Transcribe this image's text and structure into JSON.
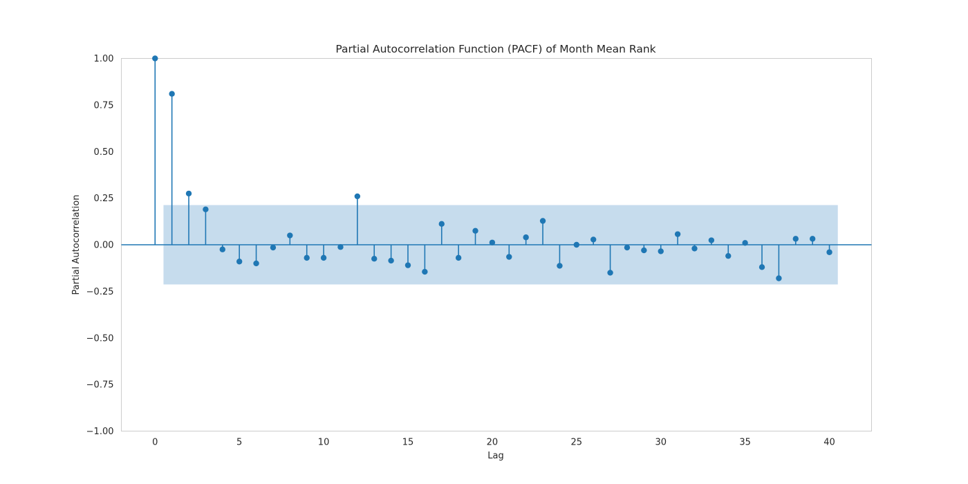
{
  "chart_data": {
    "type": "stem",
    "title": "Partial Autocorrelation Function (PACF) of Month Mean Rank",
    "xlabel": "Lag",
    "ylabel": "Partial Autocorrelation",
    "xlim": [
      -2,
      42.5
    ],
    "ylim": [
      -1.0,
      1.0
    ],
    "xticks": [
      0,
      5,
      10,
      15,
      20,
      25,
      30,
      35,
      40
    ],
    "xtick_labels": [
      "0",
      "5",
      "10",
      "15",
      "20",
      "25",
      "30",
      "35",
      "40"
    ],
    "yticks": [
      -1.0,
      -0.75,
      -0.5,
      -0.25,
      0.0,
      0.25,
      0.5,
      0.75,
      1.0
    ],
    "ytick_labels": [
      "−1.00",
      "−0.75",
      "−0.50",
      "−0.25",
      "0.00",
      "0.25",
      "0.50",
      "0.75",
      "1.00"
    ],
    "grid": false,
    "confidence_band": {
      "x_range": [
        0.5,
        40.5
      ],
      "lower": -0.213,
      "upper": 0.213,
      "color": "#c6dced"
    },
    "series_color": "#1f77b4",
    "lags": [
      0,
      1,
      2,
      3,
      4,
      5,
      6,
      7,
      8,
      9,
      10,
      11,
      12,
      13,
      14,
      15,
      16,
      17,
      18,
      19,
      20,
      21,
      22,
      23,
      24,
      25,
      26,
      27,
      28,
      29,
      30,
      31,
      32,
      33,
      34,
      35,
      36,
      37,
      38,
      39,
      40
    ],
    "values": [
      1.0,
      0.81,
      0.275,
      0.19,
      -0.025,
      -0.09,
      -0.1,
      -0.015,
      0.05,
      -0.07,
      -0.07,
      -0.012,
      0.26,
      -0.075,
      -0.085,
      -0.11,
      -0.145,
      0.112,
      -0.07,
      0.075,
      0.012,
      -0.065,
      0.04,
      0.128,
      -0.113,
      0.0,
      0.028,
      -0.15,
      -0.015,
      -0.03,
      -0.035,
      0.057,
      -0.02,
      0.024,
      -0.06,
      0.01,
      -0.12,
      -0.18,
      0.032,
      0.032,
      -0.04
    ]
  }
}
